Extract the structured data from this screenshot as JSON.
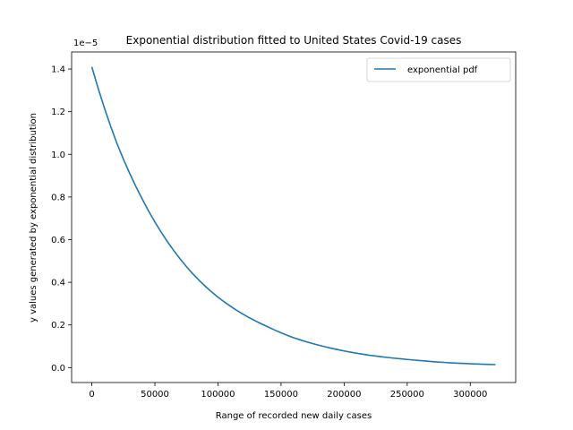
{
  "chart_data": {
    "type": "line",
    "title": "Exponential distribution fitted to United States Covid-19 cases",
    "xlabel": "Range of recorded new daily cases",
    "ylabel": "y values generated by exponential distribution",
    "y_scale_label": "1e−5",
    "xlim": [
      -16000,
      336000
    ],
    "ylim": [
      -0.07,
      1.48
    ],
    "x_ticks": [
      0,
      50000,
      100000,
      150000,
      200000,
      250000,
      300000
    ],
    "x_tick_labels": [
      "0",
      "50000",
      "100000",
      "150000",
      "200000",
      "250000",
      "300000"
    ],
    "y_ticks": [
      0.0,
      0.2,
      0.4,
      0.6,
      0.8,
      1.0,
      1.2,
      1.4
    ],
    "y_tick_labels": [
      "0.0",
      "0.2",
      "0.4",
      "0.6",
      "0.8",
      "1.0",
      "1.2",
      "1.4"
    ],
    "grid": false,
    "legend_position": "top-right",
    "series": [
      {
        "name": "exponential pdf",
        "color": "#1f77b4",
        "x": [
          0,
          20000,
          40000,
          60000,
          80000,
          100000,
          120000,
          140000,
          160000,
          180000,
          200000,
          220000,
          240000,
          260000,
          280000,
          300000,
          320000
        ],
        "y": [
          1.41,
          1.05,
          0.79,
          0.59,
          0.44,
          0.33,
          0.25,
          0.19,
          0.14,
          0.105,
          0.078,
          0.058,
          0.044,
          0.033,
          0.024,
          0.018,
          0.014
        ]
      }
    ]
  }
}
